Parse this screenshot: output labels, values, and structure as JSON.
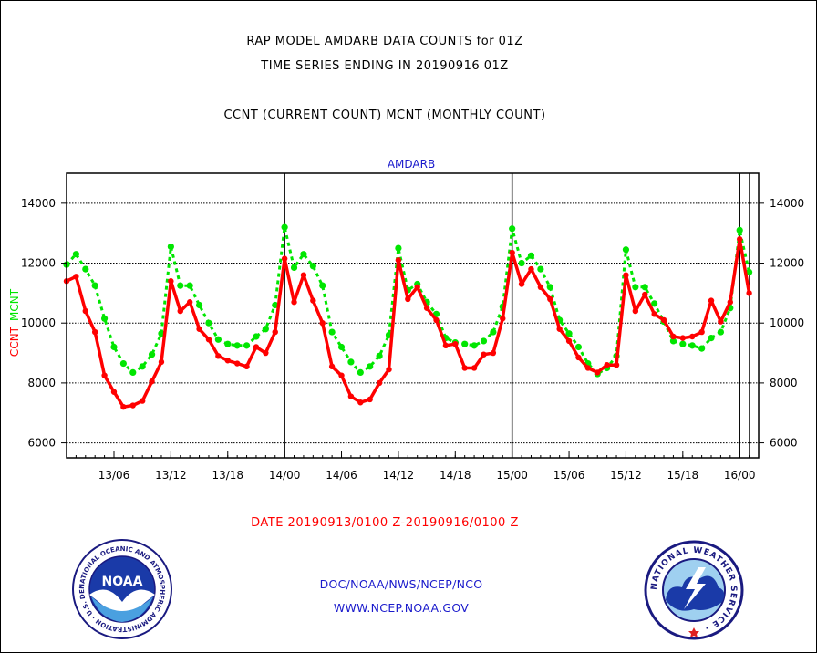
{
  "header": {
    "title_line1": "RAP MODEL AMDARB DATA COUNTS for 01Z",
    "title_line2": "TIME SERIES ENDING IN 20190916 01Z",
    "subtitle": "CCNT (CURRENT COUNT) MCNT (MONTHLY COUNT)"
  },
  "chart_data": {
    "type": "line",
    "title": "AMDARB",
    "ylabel_parts": [
      "CCNT",
      "MCNT"
    ],
    "ylim": [
      5500,
      15000
    ],
    "yticks": [
      6000,
      8000,
      10000,
      12000,
      14000
    ],
    "ytick_labels": [
      "6000",
      "8000",
      "10000",
      "12000",
      "14000"
    ],
    "xlim": [
      0,
      73
    ],
    "xticks": [
      5,
      11,
      17,
      23,
      29,
      35,
      41,
      47,
      53,
      59,
      65,
      71
    ],
    "xtick_labels": [
      "13/06",
      "13/12",
      "13/18",
      "14/00",
      "14/06",
      "14/12",
      "14/18",
      "15/00",
      "15/06",
      "15/12",
      "15/18",
      "16/00"
    ],
    "day_boundaries": [
      23,
      47,
      71
    ],
    "grid": true,
    "colors": {
      "ccnt": "#ff0000",
      "mcnt": "#00e600"
    },
    "series": [
      {
        "name": "CCNT",
        "x": [
          0,
          1,
          2,
          3,
          4,
          5,
          6,
          7,
          8,
          9,
          10,
          11,
          12,
          13,
          14,
          15,
          16,
          17,
          18,
          19,
          20,
          21,
          22,
          23,
          24,
          25,
          26,
          27,
          28,
          29,
          30,
          31,
          32,
          33,
          34,
          35,
          36,
          37,
          38,
          39,
          40,
          41,
          42,
          43,
          44,
          45,
          46,
          47,
          48,
          49,
          50,
          51,
          52,
          53,
          54,
          55,
          56,
          57,
          58,
          59,
          60,
          61,
          62,
          63,
          64,
          65,
          66,
          67,
          68,
          69,
          70,
          71,
          72
        ],
        "values": [
          11400,
          11550,
          10400,
          9700,
          8250,
          7700,
          7200,
          7250,
          7400,
          8050,
          8700,
          11400,
          10400,
          10700,
          9800,
          9450,
          8900,
          8750,
          8650,
          8550,
          9200,
          9000,
          9700,
          12150,
          10700,
          11600,
          10750,
          10000,
          8550,
          8250,
          7550,
          7350,
          7450,
          8000,
          8450,
          12100,
          10800,
          11200,
          10500,
          10100,
          9250,
          9300,
          8500,
          8500,
          8950,
          9000,
          10150,
          12350,
          11300,
          11800,
          11200,
          10800,
          9800,
          9400,
          8850,
          8500,
          8350,
          8600,
          8600,
          11600,
          10400,
          10950,
          10300,
          10100,
          9550,
          9500,
          9550,
          9700,
          10750,
          10050,
          10700,
          12800,
          11000
        ]
      },
      {
        "name": "MCNT",
        "x": [
          0,
          1,
          2,
          3,
          4,
          5,
          6,
          7,
          8,
          9,
          10,
          11,
          12,
          13,
          14,
          15,
          16,
          17,
          18,
          19,
          20,
          21,
          22,
          23,
          24,
          25,
          26,
          27,
          28,
          29,
          30,
          31,
          32,
          33,
          34,
          35,
          36,
          37,
          38,
          39,
          40,
          41,
          42,
          43,
          44,
          45,
          46,
          47,
          48,
          49,
          50,
          51,
          52,
          53,
          54,
          55,
          56,
          57,
          58,
          59,
          60,
          61,
          62,
          63,
          64,
          65,
          66,
          67,
          68,
          69,
          70,
          71,
          72
        ],
        "values": [
          11950,
          12300,
          11800,
          11250,
          10150,
          9200,
          8650,
          8350,
          8550,
          8950,
          9650,
          12550,
          11250,
          11250,
          10600,
          10000,
          9450,
          9300,
          9250,
          9250,
          9550,
          9800,
          10600,
          13200,
          11850,
          12300,
          11900,
          11250,
          9700,
          9200,
          8700,
          8350,
          8550,
          8900,
          9600,
          12500,
          11100,
          11300,
          10700,
          10300,
          9500,
          9350,
          9300,
          9250,
          9400,
          9700,
          10550,
          13150,
          12000,
          12250,
          11800,
          11200,
          10100,
          9650,
          9200,
          8650,
          8300,
          8500,
          8900,
          12450,
          11200,
          11200,
          10650,
          10050,
          9400,
          9300,
          9250,
          9150,
          9500,
          9700,
          10500,
          13100,
          11700
        ]
      }
    ]
  },
  "footer": {
    "date_range": "DATE 20190913/0100 Z-20190916/0100 Z",
    "org": "DOC/NOAA/NWS/NCEP/NCO",
    "url": "WWW.NCEP.NOAA.GOV",
    "noaa_logo_text": "NOAA",
    "noaa_ring_text": "NATIONAL OCEANIC AND ATMOSPHERIC ADMINISTRATION · U.S. DEPARTMENT OF COMMERCE ·",
    "nws_ring_text": "NATIONAL WEATHER SERVICE ·"
  }
}
